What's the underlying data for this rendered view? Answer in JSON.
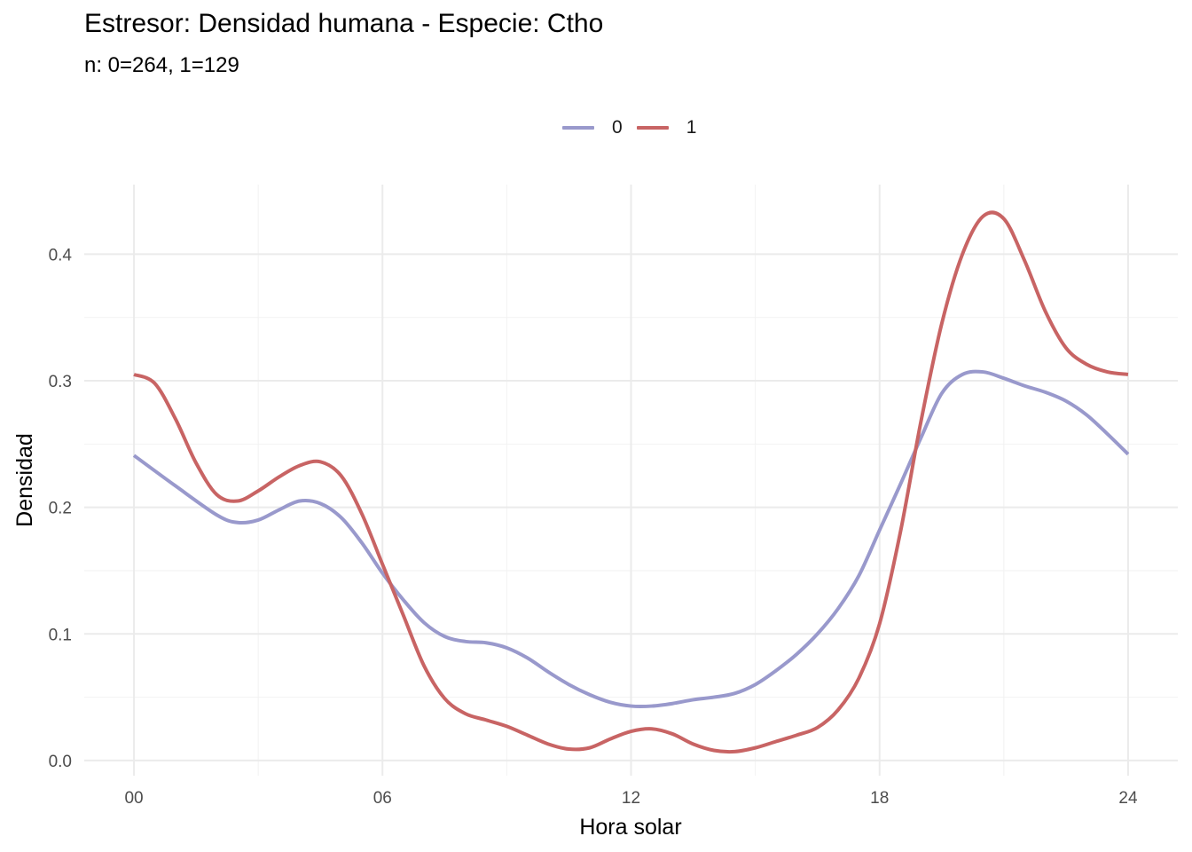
{
  "chart_data": {
    "type": "line",
    "title": "Estresor: Densidad humana - Especie:  Ctho",
    "subtitle": "n:  0=264, 1=129",
    "xlabel": "Hora solar",
    "ylabel": "Densidad",
    "xlim": [
      -1.2,
      25.2
    ],
    "ylim": [
      -0.012,
      0.455
    ],
    "x_ticks": [
      0,
      6,
      12,
      18,
      24
    ],
    "x_tick_labels": [
      "00",
      "06",
      "12",
      "18",
      "24"
    ],
    "y_ticks": [
      0.0,
      0.1,
      0.2,
      0.3,
      0.4
    ],
    "y_tick_labels": [
      "0.0",
      "0.1",
      "0.2",
      "0.3",
      "0.4"
    ],
    "grid": true,
    "legend_position": "top",
    "series": [
      {
        "name": "0",
        "color": "#9999cc",
        "x": [
          0,
          1,
          2,
          2.5,
          3,
          3.5,
          4,
          4.5,
          5,
          5.5,
          6,
          6.5,
          7,
          7.5,
          8,
          8.5,
          9,
          9.5,
          10,
          10.5,
          11,
          11.5,
          12,
          12.5,
          13,
          13.5,
          14,
          14.5,
          15,
          15.5,
          16,
          16.5,
          17,
          17.5,
          18,
          18.5,
          19,
          19.5,
          20,
          20.5,
          21,
          21.5,
          22,
          22.5,
          23,
          23.5,
          24
        ],
        "values": [
          0.241,
          0.217,
          0.194,
          0.188,
          0.19,
          0.198,
          0.205,
          0.203,
          0.192,
          0.172,
          0.148,
          0.127,
          0.109,
          0.098,
          0.094,
          0.093,
          0.089,
          0.081,
          0.07,
          0.06,
          0.052,
          0.046,
          0.043,
          0.043,
          0.045,
          0.048,
          0.05,
          0.053,
          0.06,
          0.071,
          0.084,
          0.1,
          0.12,
          0.146,
          0.182,
          0.218,
          0.255,
          0.29,
          0.305,
          0.307,
          0.302,
          0.296,
          0.291,
          0.284,
          0.273,
          0.258,
          0.242
        ]
      },
      {
        "name": "1",
        "color": "#c86464",
        "x": [
          0,
          0.5,
          1,
          1.5,
          2,
          2.5,
          3,
          3.5,
          4,
          4.5,
          5,
          5.5,
          6,
          6.5,
          7,
          7.5,
          8,
          8.5,
          9,
          9.5,
          10,
          10.5,
          11,
          11.5,
          12,
          12.5,
          13,
          13.5,
          14,
          14.5,
          15,
          15.5,
          16,
          16.5,
          17,
          17.5,
          18,
          18.5,
          19,
          19.5,
          20,
          20.5,
          21,
          21.5,
          22,
          22.5,
          23,
          23.5,
          24
        ],
        "values": [
          0.305,
          0.298,
          0.27,
          0.235,
          0.21,
          0.205,
          0.213,
          0.224,
          0.233,
          0.236,
          0.225,
          0.195,
          0.155,
          0.115,
          0.075,
          0.049,
          0.037,
          0.032,
          0.027,
          0.02,
          0.013,
          0.009,
          0.01,
          0.017,
          0.023,
          0.025,
          0.021,
          0.013,
          0.008,
          0.007,
          0.01,
          0.015,
          0.02,
          0.026,
          0.04,
          0.065,
          0.108,
          0.18,
          0.268,
          0.345,
          0.4,
          0.43,
          0.428,
          0.395,
          0.355,
          0.326,
          0.313,
          0.307,
          0.305
        ]
      }
    ]
  }
}
